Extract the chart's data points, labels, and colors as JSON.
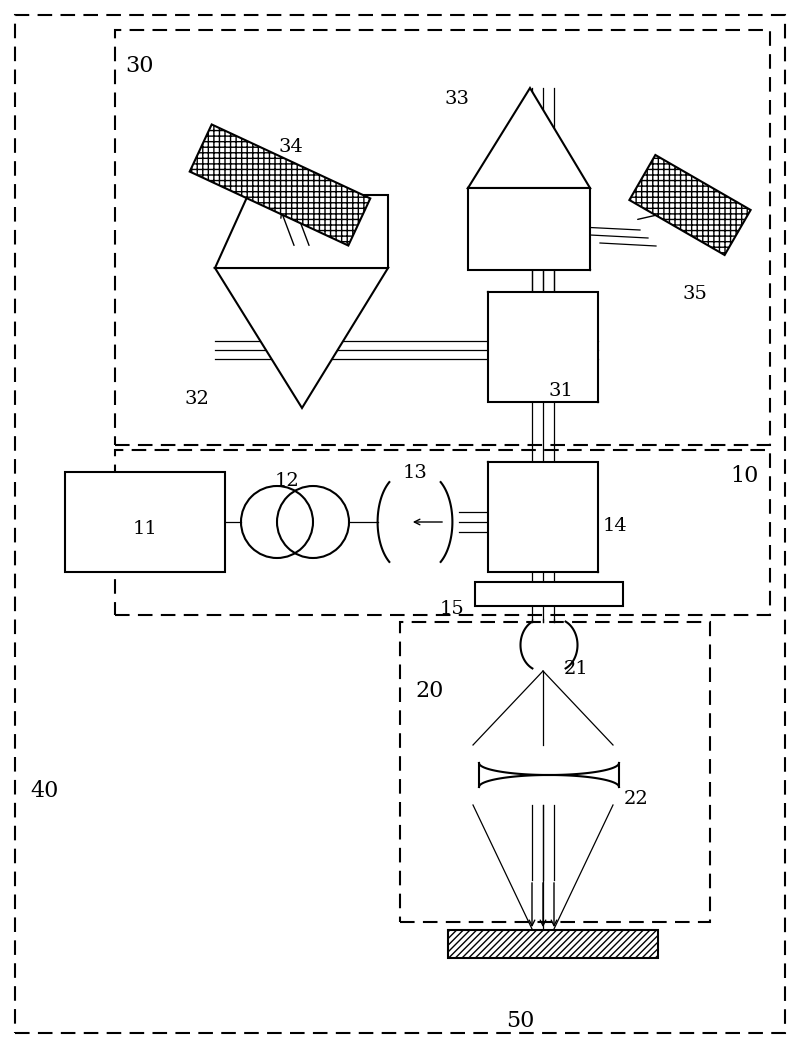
{
  "bg_color": "#ffffff",
  "lc": "#000000",
  "lw": 1.5,
  "fig_width": 8.0,
  "fig_height": 10.48,
  "dpi": 100
}
